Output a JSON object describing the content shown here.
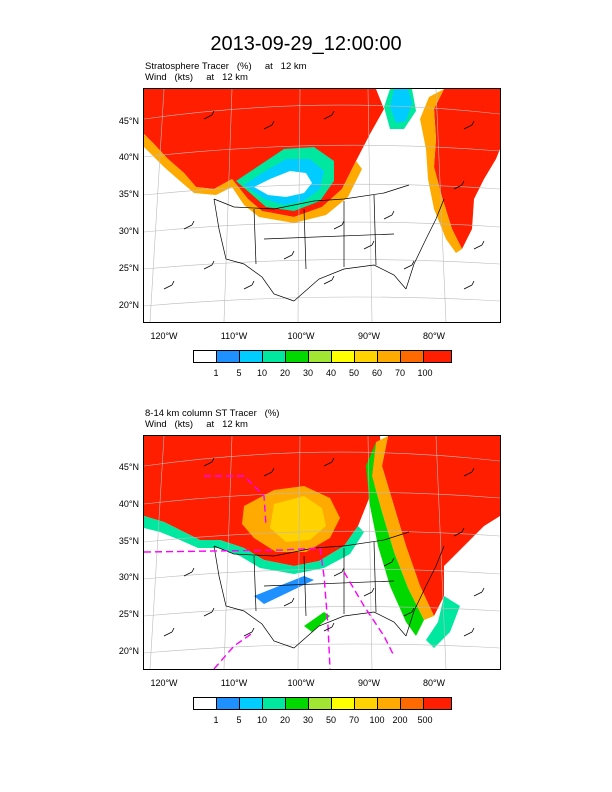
{
  "title": "2013-09-29_12:00:00",
  "panels": [
    {
      "subtitle_line1": "Stratosphere Tracer   (%)     at   12 km",
      "subtitle_line2": "Wind   (kts)     at   12 km",
      "lat_labels": [
        "45°N",
        "40°N",
        "35°N",
        "30°N",
        "25°N",
        "20°N"
      ],
      "lon_labels": [
        "120°W",
        "110°W",
        "100°W",
        "90°W",
        "80°W"
      ],
      "colorbar_labels": [
        "1",
        "5",
        "10",
        "20",
        "30",
        "40",
        "50",
        "60",
        "70",
        "100"
      ]
    },
    {
      "subtitle_line1": "8-14 km column ST Tracer   (%)",
      "subtitle_line2": "Wind   (kts)     at   12 km",
      "lat_labels": [
        "45°N",
        "40°N",
        "35°N",
        "30°N",
        "25°N",
        "20°N"
      ],
      "lon_labels": [
        "120°W",
        "110°W",
        "100°W",
        "90°W",
        "80°W"
      ],
      "colorbar_labels": [
        "1",
        "5",
        "10",
        "20",
        "30",
        "50",
        "70",
        "100",
        "200",
        "500"
      ]
    }
  ],
  "colors": {
    "palette": [
      "#ffffff",
      "#1e90ff",
      "#00ccff",
      "#00e8a0",
      "#00d800",
      "#a0e632",
      "#ffff00",
      "#ffd200",
      "#ffaa00",
      "#ff6a00",
      "#ff1e00"
    ],
    "contour": "#ff00ff",
    "coast": "#000000"
  }
}
